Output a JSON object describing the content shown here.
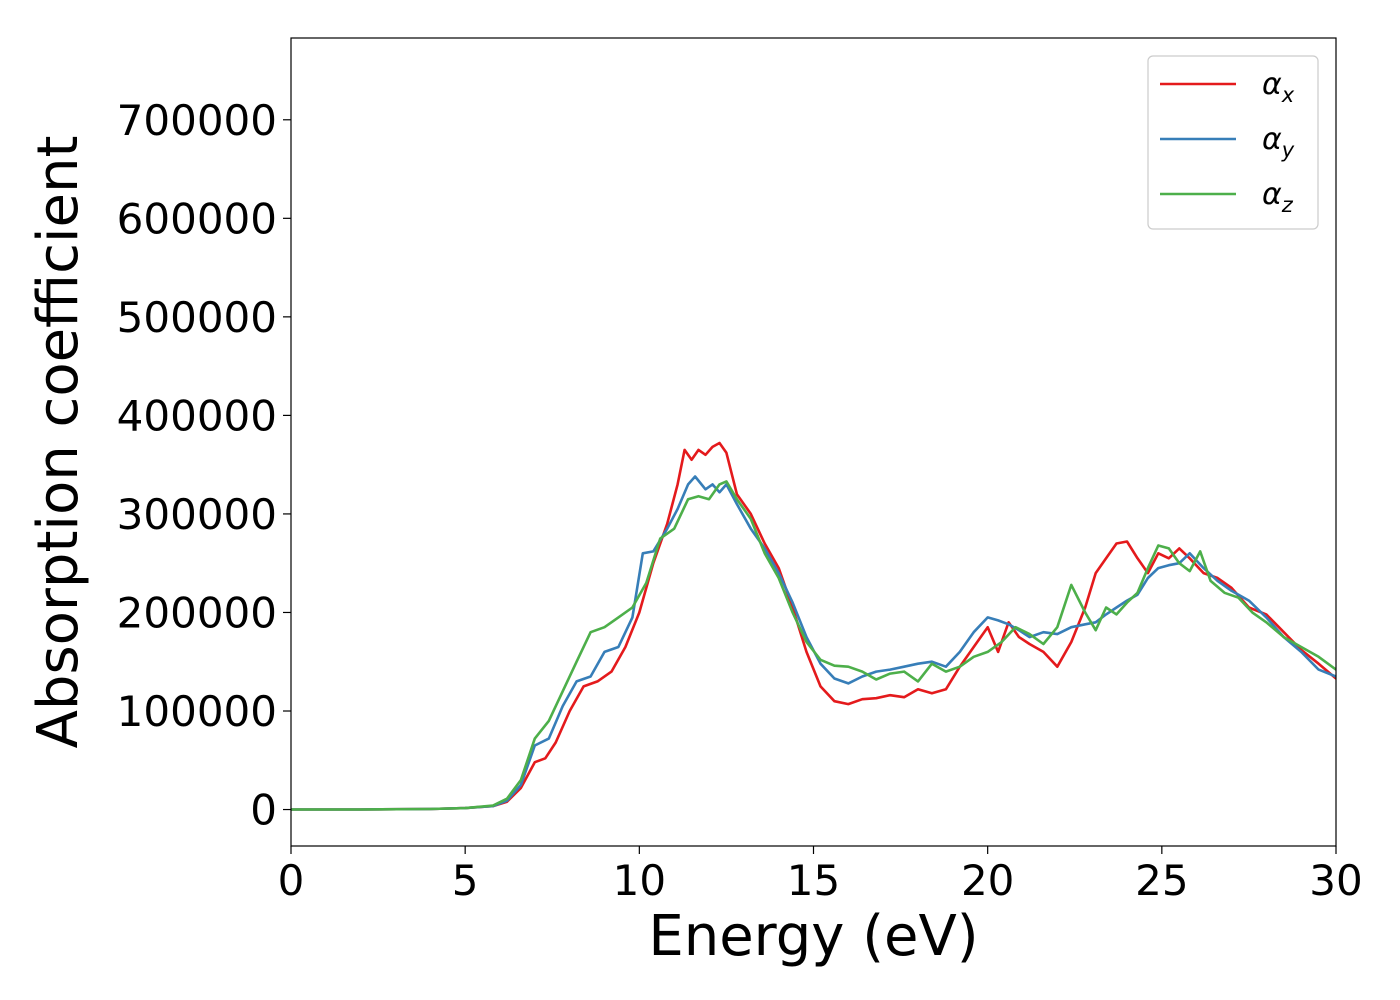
{
  "chart_data": {
    "type": "line",
    "xlabel": "Energy (eV)",
    "ylabel": "Absorption coefficient",
    "xlim": [
      0,
      30
    ],
    "ylim": [
      -37000,
      783000
    ],
    "xticks": [
      {
        "value": 0,
        "label": "0"
      },
      {
        "value": 5,
        "label": "5"
      },
      {
        "value": 10,
        "label": "10"
      },
      {
        "value": 15,
        "label": "15"
      },
      {
        "value": 20,
        "label": "20"
      },
      {
        "value": 25,
        "label": "25"
      },
      {
        "value": 30,
        "label": "30"
      }
    ],
    "yticks": [
      {
        "value": 0,
        "label": "0"
      },
      {
        "value": 100000,
        "label": "100000"
      },
      {
        "value": 200000,
        "label": "200000"
      },
      {
        "value": 300000,
        "label": "300000"
      },
      {
        "value": 400000,
        "label": "400000"
      },
      {
        "value": 500000,
        "label": "500000"
      },
      {
        "value": 600000,
        "label": "600000"
      },
      {
        "value": 700000,
        "label": "700000"
      }
    ],
    "grid": false,
    "legend_position": "top-right",
    "series": [
      {
        "name": "α",
        "subscript": "x",
        "color": "#e41a1c",
        "points": [
          [
            0,
            0
          ],
          [
            2,
            0
          ],
          [
            4,
            500
          ],
          [
            5,
            1500
          ],
          [
            5.8,
            3500
          ],
          [
            6.2,
            8000
          ],
          [
            6.6,
            22000
          ],
          [
            7,
            48000
          ],
          [
            7.3,
            52000
          ],
          [
            7.6,
            68000
          ],
          [
            8,
            100000
          ],
          [
            8.4,
            125000
          ],
          [
            8.8,
            130000
          ],
          [
            9.2,
            140000
          ],
          [
            9.6,
            165000
          ],
          [
            10,
            200000
          ],
          [
            10.4,
            250000
          ],
          [
            10.8,
            290000
          ],
          [
            11.1,
            330000
          ],
          [
            11.3,
            365000
          ],
          [
            11.5,
            355000
          ],
          [
            11.7,
            365000
          ],
          [
            11.9,
            360000
          ],
          [
            12.1,
            368000
          ],
          [
            12.3,
            372000
          ],
          [
            12.5,
            362000
          ],
          [
            12.8,
            320000
          ],
          [
            13.2,
            300000
          ],
          [
            13.6,
            270000
          ],
          [
            14,
            245000
          ],
          [
            14.4,
            205000
          ],
          [
            14.8,
            160000
          ],
          [
            15.2,
            125000
          ],
          [
            15.6,
            110000
          ],
          [
            16,
            107000
          ],
          [
            16.4,
            112000
          ],
          [
            16.8,
            113000
          ],
          [
            17.2,
            116000
          ],
          [
            17.6,
            114000
          ],
          [
            18,
            122000
          ],
          [
            18.4,
            118000
          ],
          [
            18.8,
            122000
          ],
          [
            19.2,
            145000
          ],
          [
            19.6,
            165000
          ],
          [
            20,
            185000
          ],
          [
            20.3,
            160000
          ],
          [
            20.6,
            190000
          ],
          [
            20.9,
            175000
          ],
          [
            21.2,
            168000
          ],
          [
            21.6,
            160000
          ],
          [
            22,
            145000
          ],
          [
            22.4,
            170000
          ],
          [
            22.8,
            205000
          ],
          [
            23.1,
            240000
          ],
          [
            23.4,
            255000
          ],
          [
            23.7,
            270000
          ],
          [
            24,
            272000
          ],
          [
            24.3,
            255000
          ],
          [
            24.6,
            240000
          ],
          [
            24.9,
            260000
          ],
          [
            25.2,
            255000
          ],
          [
            25.5,
            265000
          ],
          [
            25.8,
            255000
          ],
          [
            26.2,
            240000
          ],
          [
            26.6,
            235000
          ],
          [
            27,
            225000
          ],
          [
            27.5,
            205000
          ],
          [
            28,
            198000
          ],
          [
            28.5,
            180000
          ],
          [
            29,
            162000
          ],
          [
            29.5,
            148000
          ],
          [
            30,
            133000
          ]
        ]
      },
      {
        "name": "α",
        "subscript": "y",
        "color": "#377eb8",
        "points": [
          [
            0,
            0
          ],
          [
            2,
            0
          ],
          [
            4,
            500
          ],
          [
            5,
            1500
          ],
          [
            5.8,
            3500
          ],
          [
            6.2,
            9000
          ],
          [
            6.6,
            25000
          ],
          [
            7,
            65000
          ],
          [
            7.4,
            72000
          ],
          [
            7.8,
            105000
          ],
          [
            8.2,
            130000
          ],
          [
            8.6,
            135000
          ],
          [
            9,
            160000
          ],
          [
            9.4,
            165000
          ],
          [
            9.8,
            195000
          ],
          [
            10.1,
            260000
          ],
          [
            10.4,
            262000
          ],
          [
            10.8,
            285000
          ],
          [
            11.1,
            305000
          ],
          [
            11.4,
            330000
          ],
          [
            11.6,
            338000
          ],
          [
            11.9,
            325000
          ],
          [
            12.1,
            330000
          ],
          [
            12.3,
            322000
          ],
          [
            12.5,
            330000
          ],
          [
            12.8,
            310000
          ],
          [
            13.2,
            285000
          ],
          [
            13.6,
            265000
          ],
          [
            14,
            240000
          ],
          [
            14.4,
            210000
          ],
          [
            14.8,
            175000
          ],
          [
            15.2,
            148000
          ],
          [
            15.6,
            133000
          ],
          [
            16,
            128000
          ],
          [
            16.4,
            135000
          ],
          [
            16.8,
            140000
          ],
          [
            17.2,
            142000
          ],
          [
            17.6,
            145000
          ],
          [
            18,
            148000
          ],
          [
            18.4,
            150000
          ],
          [
            18.8,
            145000
          ],
          [
            19.2,
            160000
          ],
          [
            19.6,
            180000
          ],
          [
            20,
            195000
          ],
          [
            20.3,
            192000
          ],
          [
            20.6,
            188000
          ],
          [
            20.9,
            182000
          ],
          [
            21.2,
            175000
          ],
          [
            21.6,
            180000
          ],
          [
            22,
            178000
          ],
          [
            22.4,
            185000
          ],
          [
            22.8,
            188000
          ],
          [
            23.1,
            190000
          ],
          [
            23.4,
            198000
          ],
          [
            23.7,
            205000
          ],
          [
            24,
            212000
          ],
          [
            24.3,
            218000
          ],
          [
            24.6,
            235000
          ],
          [
            24.9,
            245000
          ],
          [
            25.2,
            248000
          ],
          [
            25.5,
            250000
          ],
          [
            25.8,
            260000
          ],
          [
            26.2,
            245000
          ],
          [
            26.6,
            232000
          ],
          [
            27,
            222000
          ],
          [
            27.5,
            212000
          ],
          [
            28,
            195000
          ],
          [
            28.5,
            175000
          ],
          [
            29,
            160000
          ],
          [
            29.5,
            142000
          ],
          [
            30,
            135000
          ]
        ]
      },
      {
        "name": "α",
        "subscript": "z",
        "color": "#4daf4a",
        "points": [
          [
            0,
            0
          ],
          [
            2,
            0
          ],
          [
            4,
            500
          ],
          [
            5,
            1500
          ],
          [
            5.8,
            4000
          ],
          [
            6.2,
            11000
          ],
          [
            6.6,
            30000
          ],
          [
            7,
            72000
          ],
          [
            7.4,
            90000
          ],
          [
            7.8,
            120000
          ],
          [
            8.2,
            150000
          ],
          [
            8.6,
            180000
          ],
          [
            9,
            185000
          ],
          [
            9.4,
            195000
          ],
          [
            9.8,
            205000
          ],
          [
            10.2,
            230000
          ],
          [
            10.6,
            275000
          ],
          [
            11,
            285000
          ],
          [
            11.4,
            315000
          ],
          [
            11.7,
            318000
          ],
          [
            12,
            315000
          ],
          [
            12.3,
            330000
          ],
          [
            12.5,
            333000
          ],
          [
            12.8,
            315000
          ],
          [
            13.2,
            295000
          ],
          [
            13.6,
            260000
          ],
          [
            14,
            235000
          ],
          [
            14.4,
            200000
          ],
          [
            14.8,
            170000
          ],
          [
            15.2,
            152000
          ],
          [
            15.6,
            146000
          ],
          [
            16,
            145000
          ],
          [
            16.4,
            140000
          ],
          [
            16.8,
            132000
          ],
          [
            17.2,
            138000
          ],
          [
            17.6,
            140000
          ],
          [
            18,
            130000
          ],
          [
            18.4,
            148000
          ],
          [
            18.8,
            140000
          ],
          [
            19.2,
            145000
          ],
          [
            19.6,
            155000
          ],
          [
            20,
            160000
          ],
          [
            20.4,
            170000
          ],
          [
            20.8,
            185000
          ],
          [
            21.2,
            178000
          ],
          [
            21.6,
            168000
          ],
          [
            22,
            185000
          ],
          [
            22.4,
            228000
          ],
          [
            22.8,
            200000
          ],
          [
            23.1,
            182000
          ],
          [
            23.4,
            205000
          ],
          [
            23.7,
            198000
          ],
          [
            24,
            210000
          ],
          [
            24.3,
            220000
          ],
          [
            24.6,
            245000
          ],
          [
            24.9,
            268000
          ],
          [
            25.2,
            265000
          ],
          [
            25.5,
            250000
          ],
          [
            25.8,
            242000
          ],
          [
            26.1,
            262000
          ],
          [
            26.4,
            232000
          ],
          [
            26.8,
            220000
          ],
          [
            27.2,
            215000
          ],
          [
            27.6,
            200000
          ],
          [
            28,
            190000
          ],
          [
            28.5,
            175000
          ],
          [
            29,
            165000
          ],
          [
            29.5,
            155000
          ],
          [
            30,
            142000
          ]
        ]
      }
    ]
  }
}
